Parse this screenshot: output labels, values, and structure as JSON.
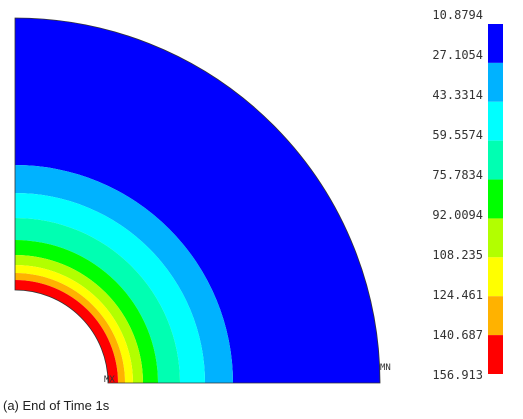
{
  "legend": {
    "levels": [
      10.8794,
      27.1054,
      43.3314,
      59.5574,
      75.7834,
      92.0094,
      108.235,
      124.461,
      140.687,
      156.913
    ],
    "colors": [
      "#0000ff",
      "#00b2ff",
      "#00ffff",
      "#00ffb2",
      "#00ff00",
      "#b2ff00",
      "#ffff00",
      "#ffb200",
      "#ff0000"
    ]
  },
  "markers": {
    "max": "MX",
    "min": "MN"
  },
  "caption": "(a) End of Time 1s"
}
